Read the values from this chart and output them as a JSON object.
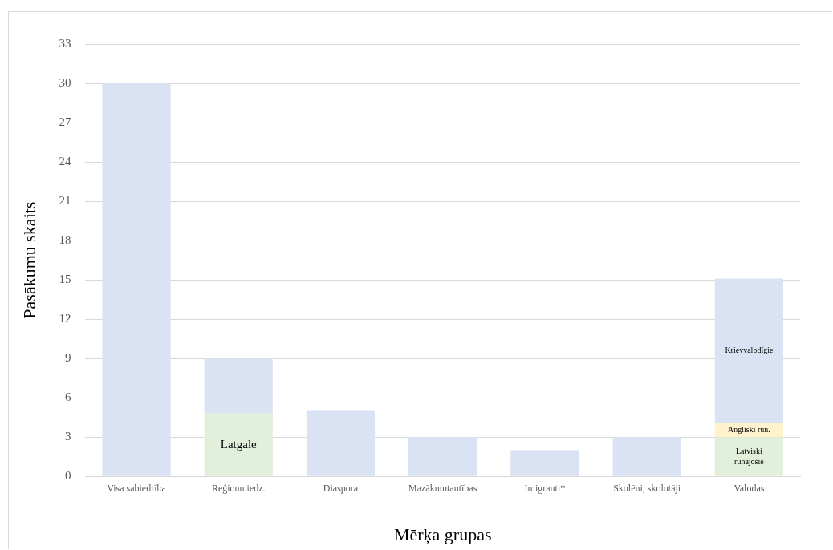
{
  "chart_data": {
    "type": "bar",
    "stacked": true,
    "xlabel": "Mērķa grupas",
    "ylabel": "Pasākumu skaits",
    "categories": [
      "Visa sabiedrība",
      "Reģionu iedz.",
      "Diaspora",
      "Mazākumtautības",
      "Imigranti*",
      "Skolēni, skolotāji",
      "Valodas"
    ],
    "series": [
      {
        "name": "Latgale",
        "color": "#e2efda",
        "values": [
          null,
          4.8,
          null,
          null,
          null,
          null,
          null
        ]
      },
      {
        "name": "Latviski runājošie",
        "color": "#e2efda",
        "values": [
          null,
          null,
          null,
          null,
          null,
          null,
          3
        ]
      },
      {
        "name": "Angliski run.",
        "color": "#fff2cc",
        "values": [
          null,
          null,
          null,
          null,
          null,
          null,
          1.1
        ]
      },
      {
        "name": "Krievvalodīgie",
        "color": "#dae3f3",
        "values": [
          null,
          null,
          null,
          null,
          null,
          null,
          11
        ]
      },
      {
        "color": "#dae3f3",
        "values": [
          30,
          4.2,
          5,
          3,
          2,
          3,
          null
        ]
      }
    ],
    "ylim": [
      0,
      33
    ],
    "yticks": [
      0,
      3,
      6,
      9,
      12,
      15,
      18,
      21,
      24,
      27,
      30,
      33
    ],
    "grid": "y",
    "legend": false
  }
}
